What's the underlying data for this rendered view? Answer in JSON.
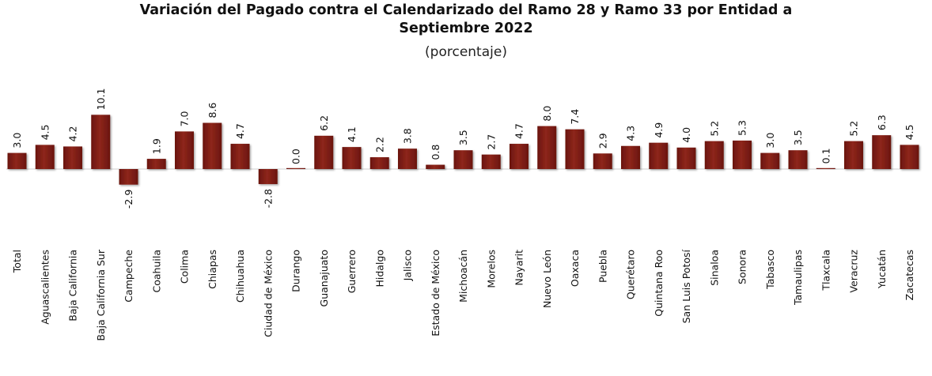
{
  "chart_data": {
    "type": "bar",
    "title_line1": "Variación del Pagado contra el Calendarizado del Ramo 28 y Ramo 33 por Entidad a",
    "title_line2": "Septiembre 2022",
    "subtitle": "(porcentaje)",
    "ylabel": "",
    "xlabel": "",
    "value_labels": [
      "3.0",
      "4.5",
      "4.2",
      "10.1",
      "-2.9",
      "1.9",
      "7.0",
      "8.6",
      "4.7",
      "-2.8",
      "0.0",
      "6.2",
      "4.1",
      "2.2",
      "3.8",
      "0.8",
      "3.5",
      "2.7",
      "4.7",
      "8.0",
      "7.4",
      "2.9",
      "4.3",
      "4.9",
      "4.0",
      "5.2",
      "5.3",
      "3.0",
      "3.5",
      "0.1",
      "5.2",
      "6.3",
      "4.5"
    ],
    "categories": [
      "Total",
      "Aguascalientes",
      "Baja California",
      "Baja California Sur",
      "Campeche",
      "Coahuila",
      "Colima",
      "Chiapas",
      "Chihuahua",
      "Ciudad de México",
      "Durango",
      "Guanajuato",
      "Guerrero",
      "Hidalgo",
      "Jalisco",
      "Estado de México",
      "Michoacán",
      "Morelos",
      "Nayarit",
      "Nuevo León",
      "Oaxaca",
      "Puebla",
      "Querétaro",
      "Quintana Roo",
      "San Luis Potosí",
      "Sinaloa",
      "Sonora",
      "Tabasco",
      "Tamaulipas",
      "Tlaxcala",
      "Veracruz",
      "Yucatán",
      "Zacatecas"
    ],
    "values": [
      3.0,
      4.5,
      4.2,
      10.1,
      -2.9,
      1.9,
      7.0,
      8.6,
      4.7,
      -2.8,
      0.0,
      6.2,
      4.1,
      2.2,
      3.8,
      0.8,
      3.5,
      2.7,
      4.7,
      8.0,
      7.4,
      2.9,
      4.3,
      4.9,
      4.0,
      5.2,
      5.3,
      3.0,
      3.5,
      0.1,
      5.2,
      6.3,
      4.5
    ],
    "bar_color": "#7b1b13",
    "bar_highlight": "#a8392d",
    "grid": false,
    "legend": "none"
  }
}
